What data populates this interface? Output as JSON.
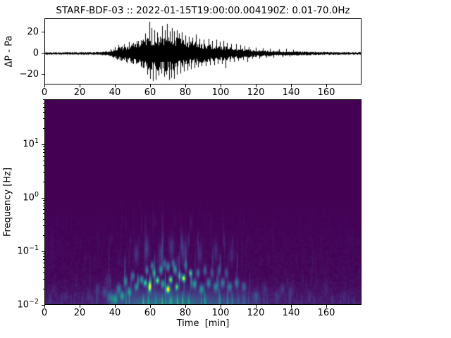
{
  "figure": {
    "title": "STARF-BDF-03 :: 2022-01-15T19:00:00.004190Z: 0.01-70.0Hz",
    "background": "#ffffff"
  },
  "chart_data": [
    {
      "type": "line",
      "name": "infrasound-waveform",
      "ylabel": "ΔP - Pa",
      "line_color": "#000000",
      "xlim": [
        0,
        180
      ],
      "ylim": [
        -29.4,
        33.3
      ],
      "xticks": [
        0,
        20,
        40,
        60,
        80,
        100,
        120,
        140,
        160
      ],
      "yticks": [
        20,
        0,
        -20
      ],
      "envelope": [
        [
          0,
          1.1
        ],
        [
          20,
          1.1
        ],
        [
          30,
          1.3
        ],
        [
          36,
          1.9
        ],
        [
          40,
          4.5
        ],
        [
          44,
          6.5
        ],
        [
          48,
          8
        ],
        [
          52,
          10.5
        ],
        [
          56,
          13
        ],
        [
          60,
          15.5
        ],
        [
          64,
          15
        ],
        [
          68,
          16
        ],
        [
          72,
          15.5
        ],
        [
          76,
          14
        ],
        [
          80,
          12
        ],
        [
          84,
          10.5
        ],
        [
          88,
          9.5
        ],
        [
          92,
          8.5
        ],
        [
          96,
          7.5
        ],
        [
          100,
          6.5
        ],
        [
          105,
          5.5
        ],
        [
          110,
          4.5
        ],
        [
          115,
          3.8
        ],
        [
          120,
          3.2
        ],
        [
          126,
          2.6
        ],
        [
          132,
          2.2
        ],
        [
          140,
          1.9
        ],
        [
          148,
          1.6
        ],
        [
          156,
          1.4
        ],
        [
          164,
          1.3
        ],
        [
          172,
          1.25
        ],
        [
          180,
          1.2
        ]
      ],
      "spikes": [
        [
          37.6,
          4
        ],
        [
          38.6,
          -4
        ],
        [
          40,
          6
        ],
        [
          41,
          -6
        ],
        [
          42,
          8
        ],
        [
          43.6,
          -7
        ],
        [
          45,
          9
        ],
        [
          46.6,
          -9
        ],
        [
          48,
          11
        ],
        [
          57,
          19
        ],
        [
          58.4,
          -20
        ],
        [
          59.6,
          30
        ],
        [
          60,
          -24
        ],
        [
          60.8,
          24
        ],
        [
          61.6,
          -26
        ],
        [
          62.3,
          22
        ],
        [
          63.2,
          -25
        ],
        [
          64,
          20
        ],
        [
          64.8,
          -21
        ],
        [
          66.4,
          -19
        ],
        [
          66.8,
          26
        ],
        [
          68,
          -22
        ],
        [
          68.4,
          22
        ],
        [
          69.2,
          -20
        ],
        [
          69.6,
          28
        ],
        [
          70.6,
          -25
        ],
        [
          71,
          21
        ],
        [
          72,
          -23
        ],
        [
          72.4,
          24
        ],
        [
          73.4,
          -24
        ],
        [
          73.6,
          21
        ],
        [
          75,
          22
        ],
        [
          75.2,
          -20
        ],
        [
          76.4,
          19
        ],
        [
          77,
          -19
        ],
        [
          78,
          20
        ],
        [
          79,
          -17
        ],
        [
          80,
          17
        ],
        [
          81,
          -16
        ],
        [
          82,
          16
        ],
        [
          83,
          -15
        ],
        [
          84,
          15
        ],
        [
          85,
          -14
        ],
        [
          86,
          18
        ],
        [
          87,
          -13
        ],
        [
          88,
          14
        ],
        [
          89,
          -12
        ],
        [
          90.6,
          13
        ],
        [
          91.6,
          -12
        ],
        [
          93,
          14
        ],
        [
          94,
          -11
        ],
        [
          95,
          12
        ],
        [
          96.4,
          -11
        ],
        [
          97.4,
          13
        ],
        [
          98.6,
          -10
        ],
        [
          99.6,
          11
        ],
        [
          100.6,
          -10
        ],
        [
          101.6,
          12
        ],
        [
          102.6,
          -14
        ],
        [
          103.6,
          10
        ],
        [
          105,
          -8
        ],
        [
          106,
          9
        ],
        [
          107.6,
          -8
        ],
        [
          108.6,
          9
        ],
        [
          110,
          -7
        ],
        [
          111,
          8
        ],
        [
          112.6,
          -6
        ],
        [
          113.6,
          7
        ],
        [
          115,
          -8
        ],
        [
          116,
          6
        ],
        [
          118,
          -5
        ],
        [
          120,
          5.5
        ],
        [
          122,
          -5
        ],
        [
          124,
          5
        ],
        [
          126,
          -4
        ],
        [
          128,
          4.5
        ],
        [
          130,
          -4
        ],
        [
          133,
          4
        ],
        [
          135,
          -3.5
        ],
        [
          137,
          4.5
        ],
        [
          139,
          -3
        ],
        [
          141,
          3.5
        ]
      ]
    },
    {
      "type": "heatmap",
      "name": "spectrogram",
      "xlabel": "Time  [min]",
      "ylabel": "Frequency [Hz]",
      "xlim": [
        0,
        180
      ],
      "xticks": [
        0,
        20,
        40,
        60,
        80,
        100,
        120,
        140,
        160
      ],
      "freq_range_hz": [
        0.01,
        70
      ],
      "log_base": 10,
      "ytick_exponents": [
        1,
        0,
        -1,
        -2
      ],
      "minor_tick_multiples": [
        2,
        3,
        4,
        5,
        6,
        7,
        8,
        9
      ],
      "colormap": "viridis",
      "background_color": "#440154",
      "colormap_stops": [
        [
          0,
          "#440154"
        ],
        [
          0.1,
          "#482475"
        ],
        [
          0.2,
          "#414487"
        ],
        [
          0.3,
          "#355F8D"
        ],
        [
          0.4,
          "#2A788E"
        ],
        [
          0.5,
          "#21918C"
        ],
        [
          0.6,
          "#22A884"
        ],
        [
          0.7,
          "#44BF70"
        ],
        [
          0.8,
          "#7AD151"
        ],
        [
          0.9,
          "#BDDF26"
        ],
        [
          1,
          "#FDE725"
        ]
      ],
      "activity": {
        "envelope": [
          [
            0,
            0.06
          ],
          [
            25,
            0.07
          ],
          [
            32,
            0.1
          ],
          [
            36,
            0.2
          ],
          [
            40,
            0.45
          ],
          [
            46,
            0.6
          ],
          [
            52,
            0.75
          ],
          [
            58,
            0.95
          ],
          [
            64,
            1
          ],
          [
            72,
            1
          ],
          [
            80,
            0.95
          ],
          [
            86,
            0.8
          ],
          [
            92,
            0.7
          ],
          [
            98,
            0.62
          ],
          [
            104,
            0.55
          ],
          [
            110,
            0.45
          ],
          [
            115,
            0.35
          ],
          [
            120,
            0.22
          ],
          [
            126,
            0.14
          ],
          [
            132,
            0.1
          ],
          [
            140,
            0.07
          ],
          [
            150,
            0.05
          ],
          [
            160,
            0.04
          ],
          [
            180,
            0.03
          ]
        ],
        "blobs": [
          [
            59.6,
            0.022,
            0.95,
            1.0,
            0.09
          ],
          [
            57,
            0.026,
            0.7,
            0.9,
            0.06
          ],
          [
            64,
            0.029,
            0.8,
            1.0,
            0.06
          ],
          [
            70,
            0.02,
            1.0,
            1.2,
            0.07
          ],
          [
            71.5,
            0.03,
            0.85,
            1.0,
            0.06
          ],
          [
            75,
            0.022,
            0.7,
            0.9,
            0.06
          ],
          [
            78.8,
            0.032,
            0.9,
            1.1,
            0.06
          ],
          [
            82.8,
            0.04,
            0.7,
            0.9,
            0.06
          ],
          [
            62,
            0.04,
            0.5,
            1.0,
            0.08
          ],
          [
            66,
            0.046,
            0.5,
            1.0,
            0.08
          ],
          [
            70,
            0.052,
            0.45,
            1.0,
            0.08
          ],
          [
            74,
            0.046,
            0.5,
            1.0,
            0.08
          ],
          [
            76.5,
            0.036,
            0.45,
            1.0,
            0.07
          ],
          [
            67,
            0.025,
            0.55,
            1.0,
            0.07
          ],
          [
            55,
            0.03,
            0.5,
            1.0,
            0.07
          ],
          [
            52,
            0.022,
            0.45,
            1.0,
            0.07
          ],
          [
            48,
            0.018,
            0.45,
            1.2,
            0.08
          ],
          [
            44,
            0.015,
            0.42,
            1.2,
            0.08
          ],
          [
            58,
            0.045,
            0.4,
            0.9,
            0.07
          ],
          [
            61,
            0.055,
            0.35,
            0.9,
            0.07
          ],
          [
            68,
            0.06,
            0.3,
            0.9,
            0.08
          ],
          [
            73,
            0.06,
            0.32,
            0.9,
            0.08
          ],
          [
            80,
            0.055,
            0.3,
            0.9,
            0.08
          ],
          [
            50,
            0.035,
            0.35,
            1.0,
            0.08
          ],
          [
            46,
            0.028,
            0.35,
            1.0,
            0.08
          ],
          [
            42,
            0.02,
            0.35,
            1.2,
            0.09
          ],
          [
            40,
            0.013,
            0.4,
            1.4,
            0.1
          ],
          [
            85,
            0.025,
            0.5,
            1.2,
            0.08
          ],
          [
            89,
            0.02,
            0.45,
            1.2,
            0.08
          ],
          [
            93,
            0.026,
            0.4,
            1.2,
            0.08
          ],
          [
            97,
            0.022,
            0.4,
            1.2,
            0.08
          ],
          [
            101,
            0.026,
            0.38,
            1.2,
            0.08
          ],
          [
            105,
            0.022,
            0.36,
            1.2,
            0.08
          ],
          [
            109,
            0.026,
            0.32,
            1.2,
            0.08
          ],
          [
            113,
            0.022,
            0.28,
            1.2,
            0.08
          ],
          [
            87,
            0.04,
            0.35,
            1.0,
            0.08
          ],
          [
            91,
            0.045,
            0.28,
            1.0,
            0.09
          ],
          [
            95,
            0.04,
            0.25,
            1.0,
            0.09
          ],
          [
            99,
            0.045,
            0.22,
            1.0,
            0.09
          ],
          [
            103,
            0.04,
            0.22,
            1.0,
            0.09
          ],
          [
            52,
            0.09,
            0.13,
            1.4,
            0.18
          ],
          [
            58,
            0.11,
            0.14,
            1.4,
            0.2
          ],
          [
            66,
            0.09,
            0.15,
            1.4,
            0.2
          ],
          [
            72,
            0.12,
            0.14,
            1.4,
            0.2
          ],
          [
            79,
            0.1,
            0.13,
            1.4,
            0.2
          ],
          [
            88,
            0.09,
            0.11,
            1.4,
            0.18
          ],
          [
            97,
            0.1,
            0.1,
            1.4,
            0.18
          ],
          [
            106,
            0.09,
            0.09,
            1.4,
            0.18
          ],
          [
            30,
            0.02,
            0.12,
            1.4,
            0.12
          ],
          [
            34,
            0.018,
            0.15,
            1.3,
            0.1
          ],
          [
            37,
            0.014,
            0.28,
            1.4,
            0.1
          ],
          [
            25,
            0.015,
            0.08,
            1.3,
            0.1
          ],
          [
            12,
            0.015,
            0.06,
            1.3,
            0.1
          ],
          [
            5,
            0.02,
            0.05,
            1.3,
            0.1
          ],
          [
            120,
            0.015,
            0.16,
            1.4,
            0.1
          ],
          [
            125,
            0.02,
            0.11,
            1.4,
            0.1
          ],
          [
            132,
            0.015,
            0.09,
            1.4,
            0.1
          ],
          [
            135,
            0.02,
            0.12,
            1.2,
            0.1
          ],
          [
            140,
            0.018,
            0.08,
            1.3,
            0.1
          ],
          [
            150,
            0.015,
            0.06,
            1.3,
            0.1
          ],
          [
            160,
            0.02,
            0.05,
            1.3,
            0.1
          ],
          [
            170,
            0.015,
            0.05,
            1.3,
            0.1
          ]
        ]
      }
    }
  ]
}
